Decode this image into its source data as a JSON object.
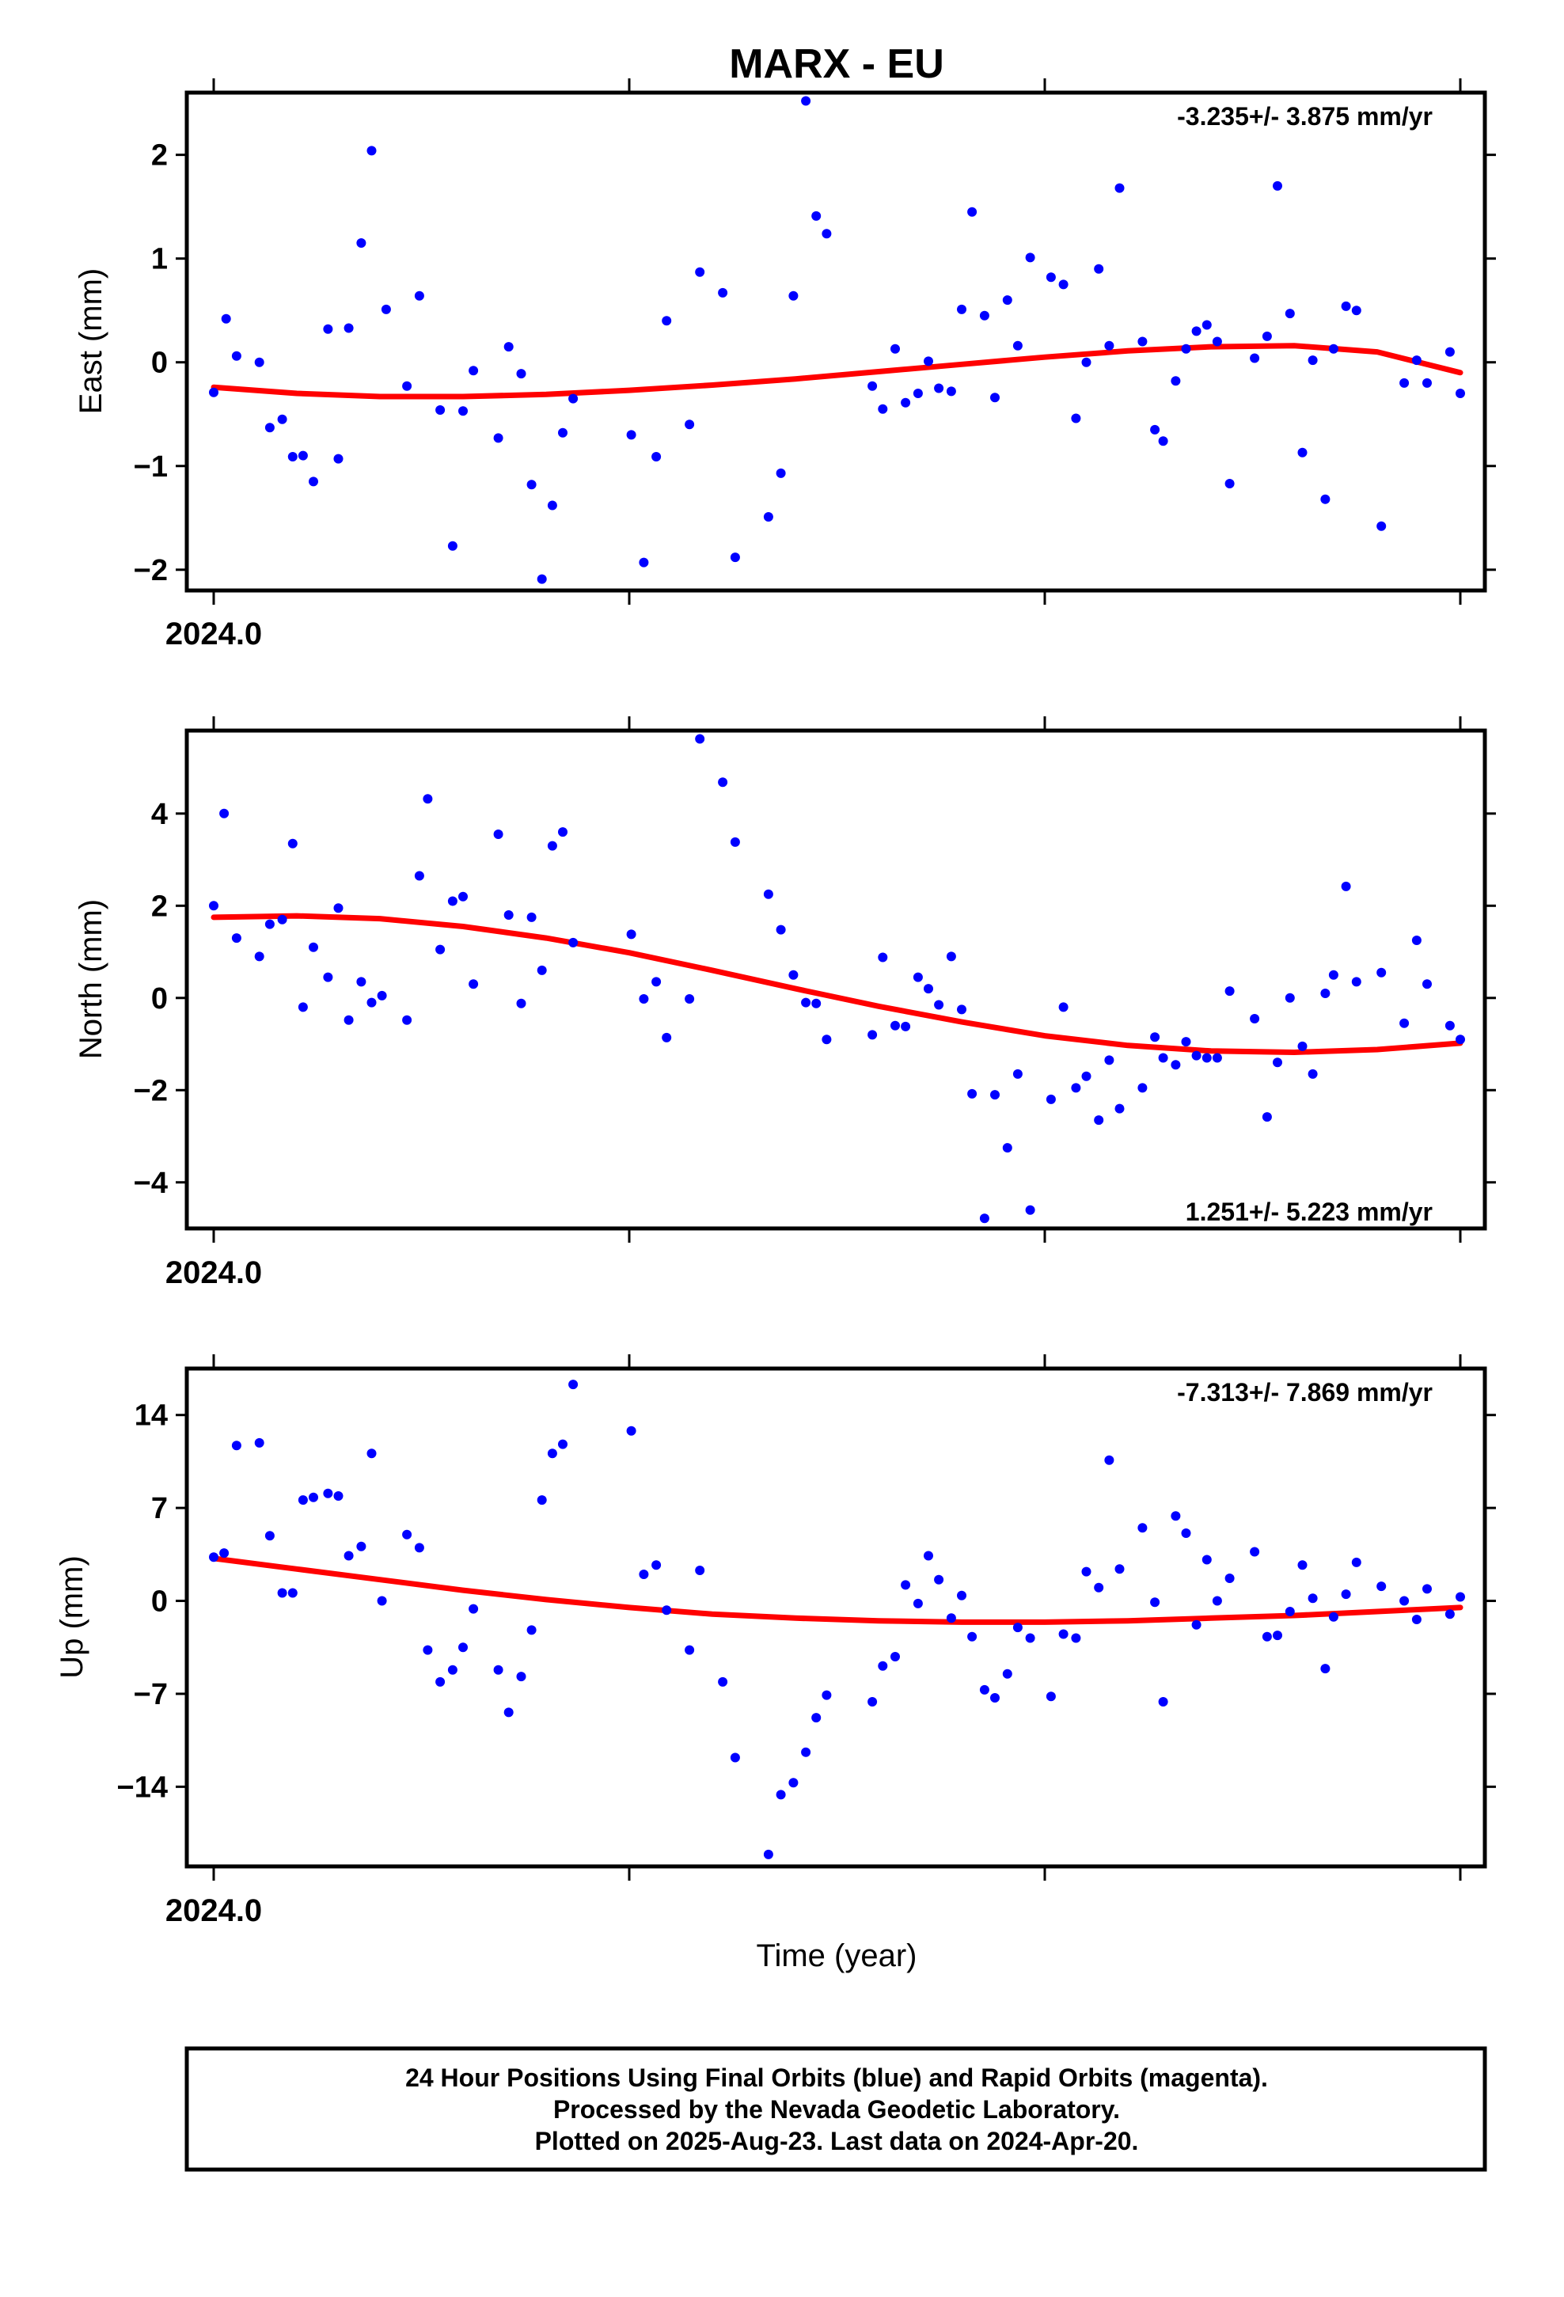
{
  "chart_data": [
    {
      "type": "scatter",
      "title": "MARX - EU",
      "ylabel": "East (mm)",
      "xlabel": "",
      "x_tick_label": "2024.0",
      "ylim": [
        -2.2,
        2.6
      ],
      "yticks": [
        2,
        1,
        0,
        -1,
        -2
      ],
      "ytick_labels": [
        "2",
        "1",
        "0",
        "−1",
        "−2"
      ],
      "rate": "-3.235+/- 3.875 mm/yr",
      "rate_position": "top-right",
      "point_color": "#0000ff",
      "fit_color": "#ff0000",
      "x": [
        2024.0,
        2024.003,
        2024.0055,
        2024.011,
        2024.0135,
        2024.0165,
        2024.019,
        2024.0215,
        2024.024,
        2024.0275,
        2024.03,
        2024.0325,
        2024.0355,
        2024.038,
        2024.0415,
        2024.0465,
        2024.0495,
        2024.0545,
        2024.0575,
        2024.06,
        2024.0625,
        2024.0685,
        2024.071,
        2024.074,
        2024.0765,
        2024.079,
        2024.0815,
        2024.084,
        2024.0865,
        2024.1005,
        2024.1035,
        2024.1065,
        2024.109,
        2024.1145,
        2024.117,
        2024.1225,
        2024.1255,
        2024.1335,
        2024.1365,
        2024.1395,
        2024.1425,
        2024.145,
        2024.1475,
        2024.1585,
        2024.161,
        2024.164,
        2024.1665,
        2024.1695,
        2024.172,
        2024.1745,
        2024.1775,
        2024.18,
        2024.1825,
        2024.1855,
        2024.188,
        2024.191,
        2024.1935,
        2024.1965,
        2024.2015,
        2024.2045,
        2024.2075,
        2024.21,
        2024.213,
        2024.2155,
        2024.218,
        2024.2235,
        2024.2265,
        2024.2285,
        2024.2315,
        2024.234,
        2024.2365,
        2024.239,
        2024.2415,
        2024.2445,
        2024.2505,
        2024.2535,
        2024.256,
        2024.259,
        2024.262,
        2024.2645,
        2024.2675,
        2024.2695,
        2024.2725,
        2024.275,
        2024.281,
        2024.2865,
        2024.2895,
        2024.292,
        2024.2975,
        2024.3
      ],
      "y": [
        -0.29,
        0.42,
        0.06,
        0.0,
        -0.63,
        -0.55,
        -0.91,
        -0.9,
        -1.15,
        0.32,
        -0.93,
        0.33,
        1.15,
        2.04,
        0.51,
        -0.23,
        0.64,
        -0.46,
        -1.77,
        -0.47,
        -0.08,
        -0.73,
        0.15,
        -0.11,
        -1.18,
        -2.09,
        -1.38,
        -0.68,
        -0.35,
        -0.7,
        -1.93,
        -0.91,
        0.4,
        -0.6,
        0.87,
        0.67,
        -1.88,
        -1.49,
        -1.07,
        0.64,
        2.52,
        1.41,
        1.24,
        -0.23,
        -0.45,
        0.13,
        -0.39,
        -0.3,
        0.01,
        -0.25,
        -0.28,
        0.51,
        1.45,
        0.45,
        -0.34,
        0.6,
        0.16,
        1.01,
        0.82,
        0.75,
        -0.54,
        0.0,
        0.9,
        0.16,
        1.68,
        0.2,
        -0.65,
        -0.76,
        -0.18,
        0.13,
        0.3,
        0.36,
        0.2,
        -1.17,
        0.04,
        0.25,
        1.7,
        0.47,
        -0.87,
        0.02,
        -1.32,
        0.13,
        0.54,
        0.5,
        -1.58,
        -0.2,
        0.02,
        -0.2,
        0.1,
        -0.3
      ],
      "fit_x": [
        2024.0,
        2024.02,
        2024.04,
        2024.06,
        2024.08,
        2024.1,
        2024.12,
        2024.14,
        2024.16,
        2024.18,
        2024.2,
        2024.22,
        2024.24,
        2024.26,
        2024.28,
        2024.3
      ],
      "fit_y": [
        -0.24,
        -0.3,
        -0.33,
        -0.33,
        -0.31,
        -0.27,
        -0.22,
        -0.16,
        -0.09,
        -0.02,
        0.05,
        0.11,
        0.15,
        0.16,
        0.1,
        -0.1
      ]
    },
    {
      "type": "scatter",
      "title": "",
      "ylabel": "North (mm)",
      "xlabel": "",
      "x_tick_label": "2024.0",
      "ylim": [
        -5.0,
        5.8
      ],
      "yticks": [
        4,
        2,
        0,
        -2,
        -4
      ],
      "ytick_labels": [
        "4",
        "2",
        "0",
        "−2",
        "−4"
      ],
      "rate": "1.251+/- 5.223 mm/yr",
      "rate_position": "bottom-right",
      "point_color": "#0000ff",
      "fit_color": "#ff0000",
      "x": [
        2024.0,
        2024.0025,
        2024.0055,
        2024.011,
        2024.0135,
        2024.0165,
        2024.019,
        2024.0215,
        2024.024,
        2024.0275,
        2024.03,
        2024.0325,
        2024.0355,
        2024.038,
        2024.0405,
        2024.0465,
        2024.0495,
        2024.0515,
        2024.0545,
        2024.0575,
        2024.06,
        2024.0625,
        2024.0685,
        2024.071,
        2024.074,
        2024.0765,
        2024.079,
        2024.0815,
        2024.084,
        2024.0865,
        2024.1005,
        2024.1035,
        2024.1065,
        2024.109,
        2024.1145,
        2024.117,
        2024.1225,
        2024.1255,
        2024.1335,
        2024.1365,
        2024.1395,
        2024.1425,
        2024.145,
        2024.1475,
        2024.1585,
        2024.161,
        2024.164,
        2024.1665,
        2024.1695,
        2024.172,
        2024.1745,
        2024.1775,
        2024.18,
        2024.1825,
        2024.1855,
        2024.188,
        2024.191,
        2024.1935,
        2024.1965,
        2024.2015,
        2024.2045,
        2024.2075,
        2024.21,
        2024.213,
        2024.2155,
        2024.218,
        2024.2235,
        2024.2265,
        2024.2285,
        2024.2315,
        2024.234,
        2024.2365,
        2024.239,
        2024.2415,
        2024.2445,
        2024.2505,
        2024.2535,
        2024.256,
        2024.259,
        2024.262,
        2024.2645,
        2024.2675,
        2024.2695,
        2024.2725,
        2024.275,
        2024.281,
        2024.2865,
        2024.2895,
        2024.292,
        2024.2975,
        2024.3
      ],
      "y": [
        2.0,
        4.0,
        1.3,
        0.9,
        1.6,
        1.7,
        3.35,
        -0.2,
        1.1,
        0.45,
        1.95,
        -0.48,
        0.35,
        -0.1,
        0.05,
        -0.48,
        2.65,
        4.32,
        1.05,
        2.1,
        2.2,
        0.3,
        3.55,
        1.8,
        -0.12,
        1.75,
        0.6,
        3.3,
        3.6,
        1.2,
        1.38,
        -0.02,
        0.35,
        -0.86,
        -0.02,
        5.62,
        4.68,
        3.38,
        2.25,
        1.48,
        0.5,
        -0.1,
        -0.12,
        -0.9,
        -0.8,
        0.88,
        -0.6,
        -0.62,
        0.45,
        0.2,
        -0.15,
        0.9,
        -0.25,
        -2.08,
        -4.78,
        -2.1,
        -3.25,
        -1.65,
        -4.6,
        -2.2,
        -0.2,
        -1.95,
        -1.7,
        -2.65,
        -1.35,
        -2.4,
        -1.95,
        -0.85,
        -1.3,
        -1.45,
        -0.95,
        -1.25,
        -1.3,
        -1.3,
        0.15,
        -0.45,
        -2.58,
        -1.4,
        0.0,
        -1.05,
        -1.65,
        0.1,
        0.5,
        2.42,
        0.35,
        0.55,
        -0.55,
        1.25,
        0.3,
        -0.6,
        -0.9
      ],
      "fit_x": [
        2024.0,
        2024.02,
        2024.04,
        2024.06,
        2024.08,
        2024.1,
        2024.12,
        2024.14,
        2024.16,
        2024.18,
        2024.2,
        2024.22,
        2024.24,
        2024.26,
        2024.28,
        2024.3
      ],
      "fit_y": [
        1.75,
        1.78,
        1.72,
        1.55,
        1.3,
        0.98,
        0.6,
        0.2,
        -0.18,
        -0.52,
        -0.82,
        -1.03,
        -1.15,
        -1.18,
        -1.12,
        -0.98
      ]
    },
    {
      "type": "scatter",
      "title": "",
      "ylabel": "Up (mm)",
      "xlabel": "Time (year)",
      "x_tick_label": "2024.0",
      "ylim": [
        -20,
        17.5
      ],
      "yticks": [
        14,
        7,
        0,
        -7,
        -14
      ],
      "ytick_labels": [
        "14",
        "7",
        "0",
        "−7",
        "−14"
      ],
      "rate": "-7.313+/- 7.869 mm/yr",
      "rate_position": "top-right",
      "point_color": "#0000ff",
      "fit_color": "#ff0000",
      "x": [
        2024.0,
        2024.0025,
        2024.0055,
        2024.011,
        2024.0135,
        2024.0165,
        2024.019,
        2024.0215,
        2024.024,
        2024.0275,
        2024.03,
        2024.0325,
        2024.0355,
        2024.038,
        2024.0405,
        2024.0465,
        2024.0495,
        2024.0515,
        2024.0545,
        2024.0575,
        2024.06,
        2024.0625,
        2024.0685,
        2024.071,
        2024.074,
        2024.0765,
        2024.079,
        2024.0815,
        2024.084,
        2024.0865,
        2024.1005,
        2024.1035,
        2024.1065,
        2024.109,
        2024.1145,
        2024.117,
        2024.1225,
        2024.1255,
        2024.1335,
        2024.1365,
        2024.1395,
        2024.1425,
        2024.145,
        2024.1475,
        2024.1585,
        2024.161,
        2024.164,
        2024.1665,
        2024.1695,
        2024.172,
        2024.1745,
        2024.1775,
        2024.18,
        2024.1825,
        2024.1855,
        2024.188,
        2024.191,
        2024.1935,
        2024.1965,
        2024.2015,
        2024.2045,
        2024.2075,
        2024.21,
        2024.213,
        2024.2155,
        2024.218,
        2024.2235,
        2024.2265,
        2024.2285,
        2024.2315,
        2024.234,
        2024.2365,
        2024.239,
        2024.2415,
        2024.2445,
        2024.2505,
        2024.2535,
        2024.256,
        2024.259,
        2024.262,
        2024.2645,
        2024.2675,
        2024.2695,
        2024.2725,
        2024.275,
        2024.281,
        2024.2865,
        2024.2895,
        2024.292,
        2024.2975,
        2024.3
      ],
      "y": [
        3.3,
        3.6,
        11.7,
        11.9,
        4.9,
        0.6,
        0.6,
        7.6,
        7.8,
        8.1,
        7.9,
        3.4,
        4.1,
        11.1,
        0.0,
        5.0,
        4.0,
        -3.7,
        -6.1,
        -5.2,
        -3.5,
        -0.6,
        -5.2,
        -8.4,
        -5.7,
        -2.2,
        7.6,
        11.1,
        11.8,
        16.3,
        12.8,
        2.0,
        2.7,
        -0.7,
        -3.7,
        2.3,
        -6.1,
        -11.8,
        -19.1,
        -14.6,
        -13.7,
        -11.4,
        -8.8,
        -7.1,
        -7.6,
        -4.9,
        -4.2,
        1.2,
        -0.2,
        3.4,
        1.6,
        -1.3,
        0.4,
        -2.7,
        -6.7,
        -7.3,
        -5.5,
        -2.0,
        -2.8,
        -7.2,
        -2.5,
        -2.8,
        2.2,
        1.0,
        10.6,
        2.4,
        5.5,
        -0.1,
        -7.6,
        6.4,
        5.1,
        -1.8,
        3.1,
        0.0,
        1.7,
        3.7,
        -2.7,
        -2.6,
        -0.8,
        2.7,
        0.2,
        -5.1,
        -1.2,
        0.5,
        2.9,
        1.1,
        0.0,
        -1.4,
        0.9,
        -1.0,
        0.3
      ],
      "fit_x": [
        2024.0,
        2024.02,
        2024.04,
        2024.06,
        2024.08,
        2024.1,
        2024.12,
        2024.14,
        2024.16,
        2024.18,
        2024.2,
        2024.22,
        2024.24,
        2024.26,
        2024.28,
        2024.3
      ],
      "fit_y": [
        3.2,
        2.4,
        1.6,
        0.8,
        0.1,
        -0.5,
        -1.0,
        -1.3,
        -1.5,
        -1.6,
        -1.6,
        -1.5,
        -1.3,
        -1.1,
        -0.8,
        -0.5
      ]
    }
  ],
  "footer": {
    "line1": "24 Hour Positions Using Final Orbits (blue) and Rapid Orbits (magenta).",
    "line2": "Processed by the Nevada Geodetic Laboratory.",
    "line3": "Plotted on 2025-Aug-23. Last data on 2024-Apr-20."
  }
}
